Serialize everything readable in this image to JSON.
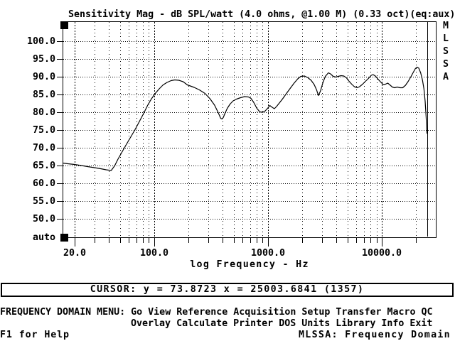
{
  "title": "Sensitivity Mag - dB SPL/watt (4.0 ohms, @1.00 M) (0.33 oct)(eq:aux)",
  "watermark_letters": [
    "M",
    "L",
    "S",
    "S",
    "A"
  ],
  "cursor_readout": "CURSOR: y = 73.8723 x = 25003.6841 (1357)",
  "menu": {
    "prompt": "FREQUENCY DOMAIN MENU:",
    "row1_items": [
      "Go",
      "View",
      "Reference",
      "Acquisition",
      "Setup",
      "Transfer",
      "Macro",
      "QC"
    ],
    "row2_items": [
      "Overlay",
      "Calculate",
      "Printer",
      "DOS",
      "Units",
      "Library",
      "Info",
      "Exit"
    ]
  },
  "status_bar": {
    "left": "F1 for Help",
    "right": "MLSSA: Frequency Domain"
  },
  "colors": {
    "foreground": "#000000",
    "background": "#ffffff"
  },
  "chart_data": {
    "type": "line",
    "title": "Sensitivity Mag - dB SPL/watt (4.0 ohms, @1.00 M) (0.33 oct)(eq:aux)",
    "xlabel": "log Frequency - Hz",
    "ylabel": "dB SPL/watt",
    "x_scale": "log",
    "grid": true,
    "xlim": [
      15.7,
      29900
    ],
    "ylim": [
      44.7,
      105.5
    ],
    "y_ticks": [
      {
        "value": 100,
        "label": "100.0"
      },
      {
        "value": 95,
        "label": "95.0"
      },
      {
        "value": 90,
        "label": "90.0"
      },
      {
        "value": 85,
        "label": "85.0"
      },
      {
        "value": 80,
        "label": "80.0"
      },
      {
        "value": 75,
        "label": "75.0"
      },
      {
        "value": 70,
        "label": "70.0"
      },
      {
        "value": 65,
        "label": "65.0"
      },
      {
        "value": 60,
        "label": "60.0"
      },
      {
        "value": 55,
        "label": "55.0"
      },
      {
        "value": 50,
        "label": "50.0"
      }
    ],
    "y_axis_bottom_label": "auto",
    "x_major_ticks": [
      {
        "value": 20,
        "label": "20.0"
      },
      {
        "value": 100,
        "label": "100.0"
      },
      {
        "value": 1000,
        "label": "1000.0"
      },
      {
        "value": 10000,
        "label": "10000.0"
      }
    ],
    "x_minor_ticks": [
      30,
      40,
      50,
      60,
      70,
      80,
      90,
      200,
      300,
      400,
      500,
      600,
      700,
      800,
      900,
      2000,
      3000,
      4000,
      5000,
      6000,
      7000,
      8000,
      9000,
      20000
    ],
    "cursor": {
      "x": 25003.6841,
      "y": 73.8723,
      "index": 1357
    },
    "series": [
      {
        "name": "sensitivity-magnitude",
        "points": [
          [
            15.7,
            65.6
          ],
          [
            17.5,
            65.4
          ],
          [
            20,
            65.2
          ],
          [
            23,
            64.9
          ],
          [
            26,
            64.6
          ],
          [
            30,
            64.3
          ],
          [
            34,
            64.0
          ],
          [
            38,
            63.7
          ],
          [
            42,
            63.5
          ],
          [
            45,
            64.8
          ],
          [
            48,
            66.6
          ],
          [
            52,
            68.6
          ],
          [
            57,
            70.8
          ],
          [
            62,
            72.8
          ],
          [
            68,
            75.0
          ],
          [
            74,
            77.2
          ],
          [
            81,
            79.6
          ],
          [
            88,
            81.9
          ],
          [
            95,
            83.7
          ],
          [
            103,
            85.3
          ],
          [
            111,
            86.5
          ],
          [
            120,
            87.6
          ],
          [
            130,
            88.3
          ],
          [
            141,
            88.8
          ],
          [
            152,
            89.0
          ],
          [
            165,
            88.9
          ],
          [
            180,
            88.5
          ],
          [
            196,
            87.6
          ],
          [
            208,
            87.3
          ],
          [
            225,
            86.9
          ],
          [
            250,
            86.2
          ],
          [
            280,
            85.2
          ],
          [
            310,
            83.7
          ],
          [
            340,
            81.9
          ],
          [
            365,
            79.9
          ],
          [
            385,
            78.2
          ],
          [
            395,
            78.0
          ],
          [
            405,
            78.4
          ],
          [
            420,
            79.6
          ],
          [
            440,
            81.0
          ],
          [
            465,
            82.2
          ],
          [
            495,
            83.1
          ],
          [
            530,
            83.6
          ],
          [
            575,
            84.0
          ],
          [
            625,
            84.3
          ],
          [
            675,
            84.2
          ],
          [
            710,
            83.8
          ],
          [
            750,
            82.7
          ],
          [
            800,
            81.0
          ],
          [
            850,
            80.0
          ],
          [
            900,
            79.9
          ],
          [
            950,
            80.3
          ],
          [
            1000,
            81.1
          ],
          [
            1040,
            81.8
          ],
          [
            1090,
            81.3
          ],
          [
            1140,
            80.9
          ],
          [
            1190,
            81.5
          ],
          [
            1260,
            82.5
          ],
          [
            1350,
            83.7
          ],
          [
            1450,
            85.1
          ],
          [
            1570,
            86.6
          ],
          [
            1700,
            88.1
          ],
          [
            1830,
            89.3
          ],
          [
            1950,
            90.0
          ],
          [
            2100,
            90.1
          ],
          [
            2250,
            89.6
          ],
          [
            2400,
            88.9
          ],
          [
            2550,
            87.7
          ],
          [
            2680,
            86.2
          ],
          [
            2780,
            84.6
          ],
          [
            2900,
            85.9
          ],
          [
            3050,
            88.3
          ],
          [
            3200,
            90.0
          ],
          [
            3400,
            91.0
          ],
          [
            3550,
            90.7
          ],
          [
            3750,
            90.0
          ],
          [
            3950,
            89.8
          ],
          [
            4150,
            90.0
          ],
          [
            4400,
            90.2
          ],
          [
            4650,
            90.1
          ],
          [
            4900,
            89.6
          ],
          [
            5150,
            88.7
          ],
          [
            5450,
            87.8
          ],
          [
            5750,
            87.1
          ],
          [
            6100,
            86.8
          ],
          [
            6400,
            87.1
          ],
          [
            6800,
            87.8
          ],
          [
            7200,
            88.6
          ],
          [
            7700,
            89.5
          ],
          [
            8100,
            90.3
          ],
          [
            8400,
            90.5
          ],
          [
            8800,
            90.1
          ],
          [
            9300,
            89.2
          ],
          [
            9800,
            88.4
          ],
          [
            10300,
            87.7
          ],
          [
            10800,
            87.8
          ],
          [
            11300,
            88.1
          ],
          [
            11800,
            87.6
          ],
          [
            12400,
            87.0
          ],
          [
            13000,
            86.8
          ],
          [
            13700,
            87.0
          ],
          [
            14500,
            86.8
          ],
          [
            15300,
            86.8
          ],
          [
            16200,
            87.5
          ],
          [
            17100,
            88.6
          ],
          [
            18000,
            89.8
          ],
          [
            19000,
            91.2
          ],
          [
            19800,
            92.2
          ],
          [
            20500,
            92.6
          ],
          [
            21200,
            92.3
          ],
          [
            22000,
            91.0
          ],
          [
            22800,
            89.0
          ],
          [
            23500,
            86.5
          ],
          [
            24100,
            83.0
          ],
          [
            24600,
            78.5
          ],
          [
            25003.6841,
            73.8723
          ]
        ]
      }
    ]
  }
}
